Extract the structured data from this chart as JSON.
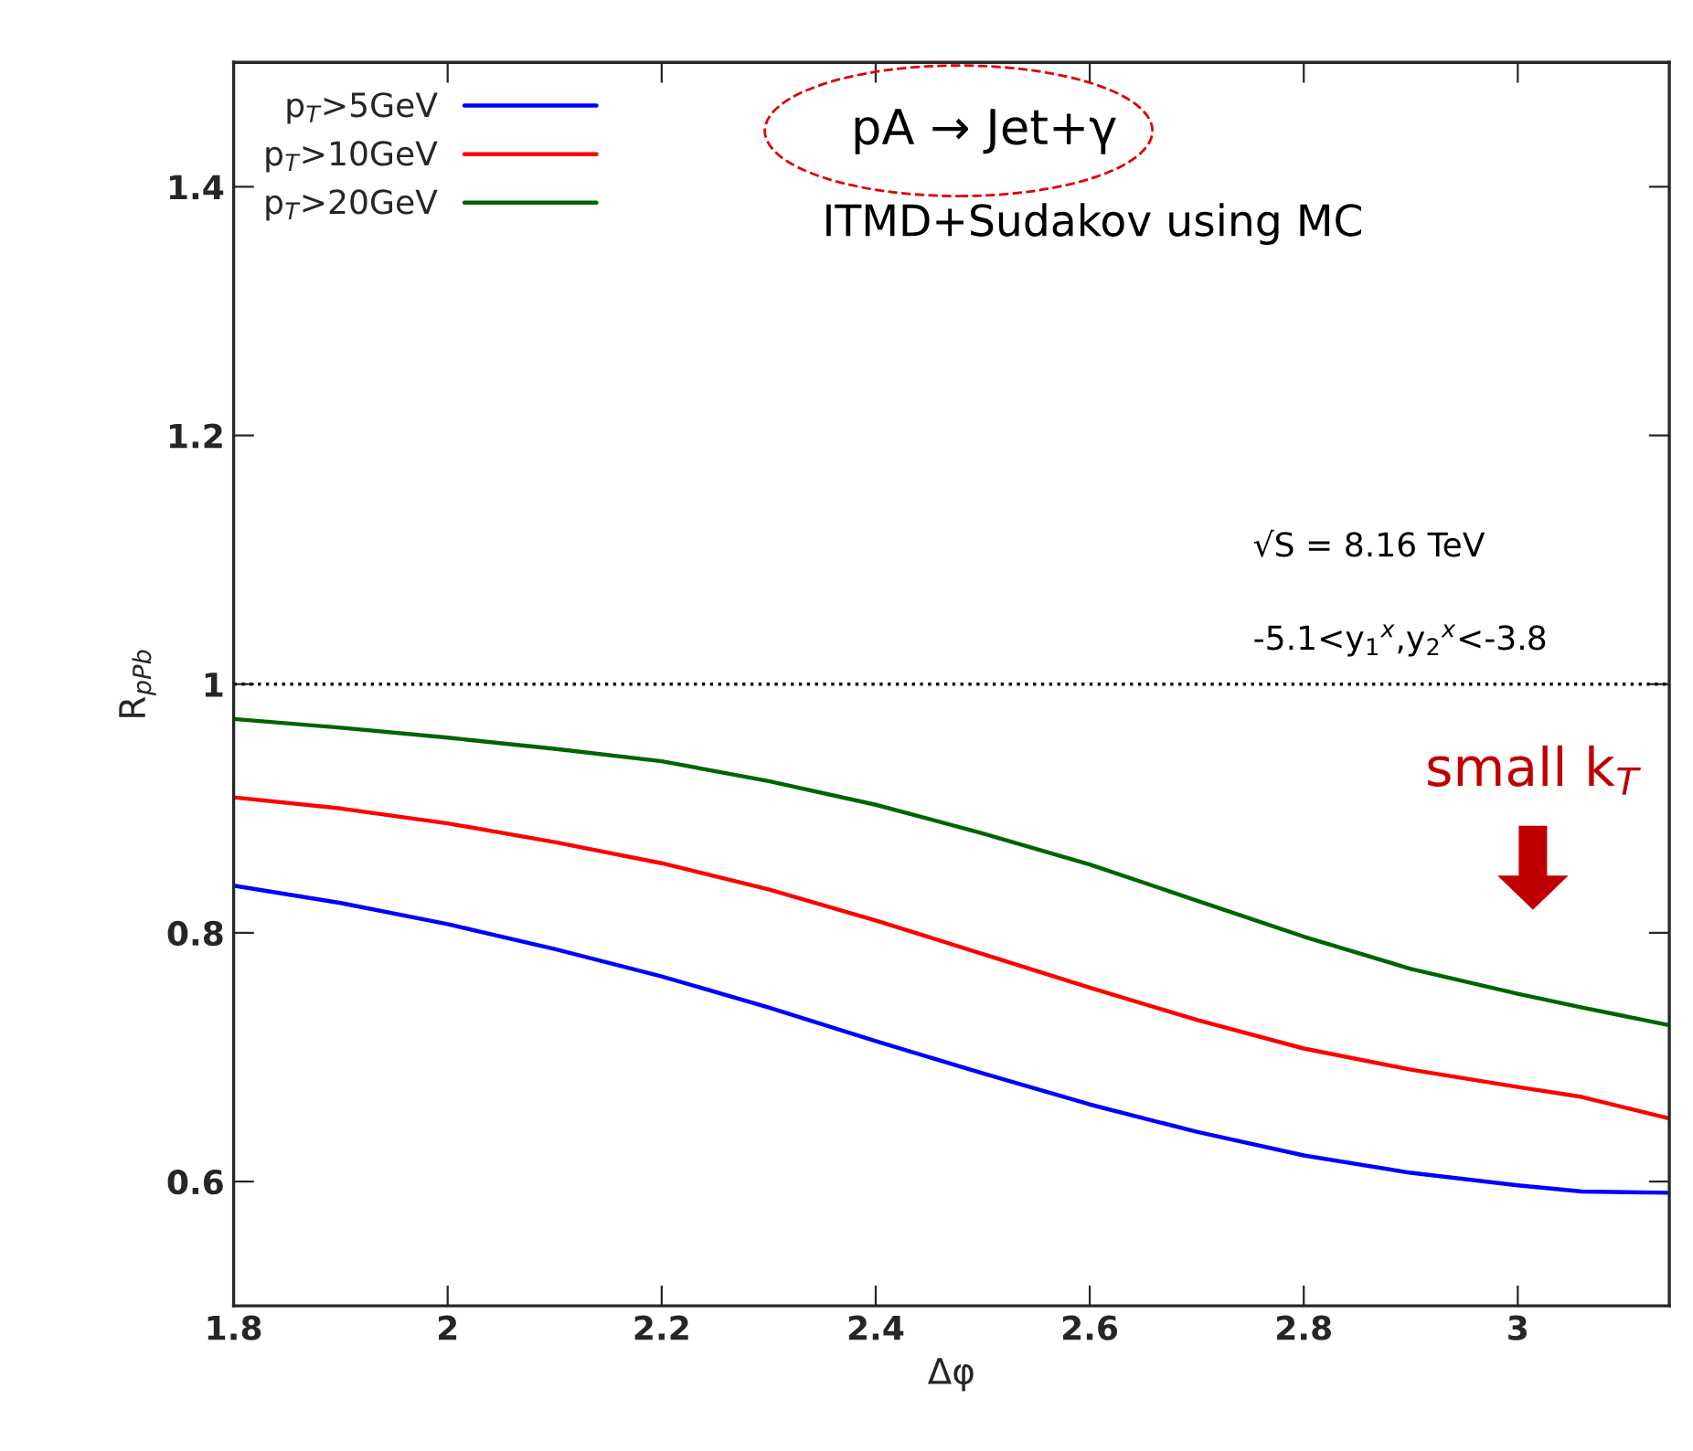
{
  "chart_data": {
    "type": "line",
    "xlabel": "Δφ",
    "ylabel": "R$_{pPb}$",
    "xlim": [
      1.8,
      3.1416
    ],
    "ylim": [
      0.5,
      1.5
    ],
    "xticks": [
      1.8,
      2,
      2.2,
      2.4,
      2.6,
      2.8,
      3
    ],
    "yticks": [
      0.6,
      0.8,
      1,
      1.2,
      1.4
    ],
    "x": [
      1.8,
      1.9,
      2.0,
      2.1,
      2.2,
      2.3,
      2.4,
      2.5,
      2.6,
      2.7,
      2.8,
      2.9,
      3.0,
      3.06,
      3.14
    ],
    "series": [
      {
        "name": "p$_{T}$>5GeV",
        "color": "#0000ff",
        "values": [
          0.838,
          0.824,
          0.807,
          0.787,
          0.765,
          0.74,
          0.713,
          0.687,
          0.662,
          0.64,
          0.621,
          0.607,
          0.597,
          0.592,
          0.591
        ]
      },
      {
        "name": "p$_{T}$>10GeV",
        "color": "#ff0000",
        "values": [
          0.909,
          0.9,
          0.888,
          0.873,
          0.856,
          0.835,
          0.81,
          0.783,
          0.756,
          0.73,
          0.707,
          0.69,
          0.676,
          0.668,
          0.651
        ]
      },
      {
        "name": "p$_{T}$>20GeV",
        "color": "#006400",
        "values": [
          0.972,
          0.965,
          0.957,
          0.948,
          0.938,
          0.922,
          0.903,
          0.88,
          0.855,
          0.826,
          0.797,
          0.771,
          0.751,
          0.74,
          0.726
        ]
      }
    ],
    "ref_lines": [
      {
        "axis": "y",
        "value": 1,
        "color": "#000000",
        "line_style": "dotted"
      }
    ],
    "annotations": [
      "pA → Jet+γ",
      "ITMD+Sudakov using MC",
      "√S = 8.16 TeV",
      "-5.1<y$_{1}$$^{x}$,y$_{2}$$^{x}$<-3.8",
      "small k$_{T}$"
    ],
    "legend": "top left",
    "grid": false,
    "line_style": "solid",
    "marker": "none"
  }
}
